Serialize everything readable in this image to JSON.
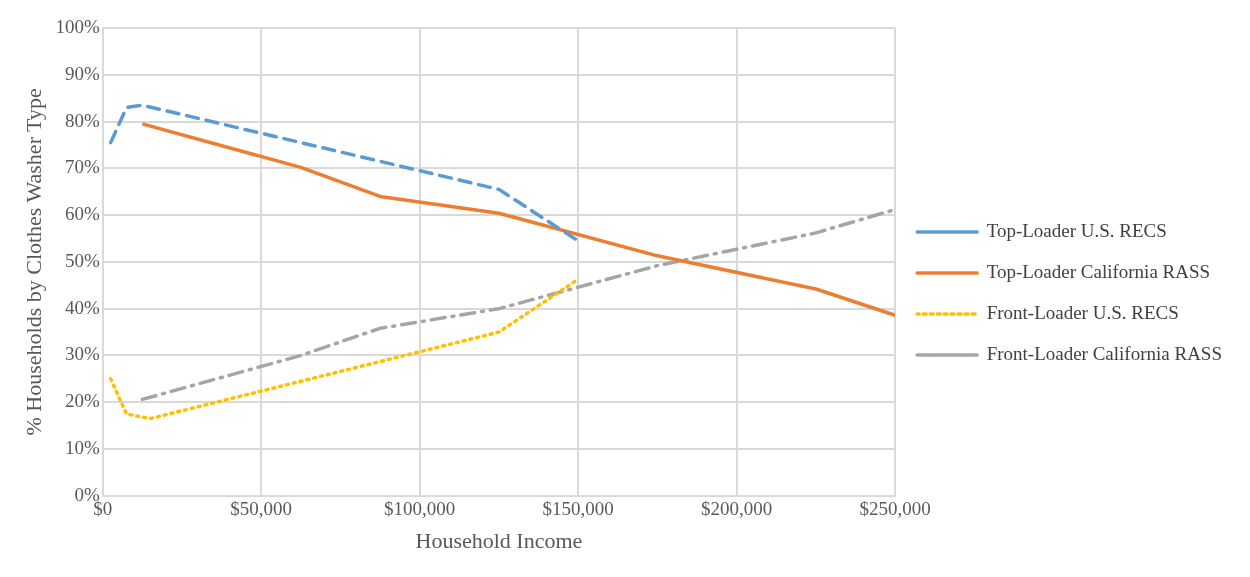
{
  "chart_data": {
    "type": "line",
    "xlabel": "Household Income",
    "ylabel": "% Households by Clothes Washer Type",
    "xlim": [
      0,
      250000
    ],
    "xticks": [
      {
        "value": 0,
        "label": "$0"
      },
      {
        "value": 50000,
        "label": "$50,000"
      },
      {
        "value": 100000,
        "label": "$100,000"
      },
      {
        "value": 150000,
        "label": "$150,000"
      },
      {
        "value": 200000,
        "label": "$200,000"
      },
      {
        "value": 250000,
        "label": "$250,000"
      }
    ],
    "ylim": [
      0,
      100
    ],
    "yticks": [
      {
        "value": 0,
        "label": "0%"
      },
      {
        "value": 10,
        "label": "10%"
      },
      {
        "value": 20,
        "label": "20%"
      },
      {
        "value": 30,
        "label": "30%"
      },
      {
        "value": 40,
        "label": "40%"
      },
      {
        "value": 50,
        "label": "50%"
      },
      {
        "value": 60,
        "label": "60%"
      },
      {
        "value": 70,
        "label": "70%"
      },
      {
        "value": 80,
        "label": "80%"
      },
      {
        "value": 90,
        "label": "90%"
      },
      {
        "value": 100,
        "label": "100%"
      }
    ],
    "grid": true,
    "legend": "right",
    "marker": "none",
    "series": [
      {
        "name": "Top-Loader U.S. RECS",
        "color": "#5b9bd5",
        "line_style": "dashed",
        "x": [
          2500,
          7500,
          12500,
          125000,
          150000
        ],
        "values": [
          75.5,
          83,
          83.5,
          65.5,
          54.5
        ]
      },
      {
        "name": "Top-Loader California RASS",
        "color": "#ed7d31",
        "line_style": "solid",
        "x": [
          12500,
          62500,
          87500,
          125000,
          175000,
          225000,
          250000
        ],
        "values": [
          79.5,
          70.2,
          64,
          60.4,
          51.3,
          44.2,
          38.6
        ]
      },
      {
        "name": "Front-Loader U.S. RECS",
        "color": "#ffc000",
        "line_style": "dotted",
        "x": [
          2500,
          7500,
          15000,
          125000,
          150000
        ],
        "values": [
          25,
          17.5,
          16.5,
          35,
          46.3
        ]
      },
      {
        "name": "Front-Loader California RASS",
        "color": "#a5a5a5",
        "line_style": "dashdot",
        "x": [
          12500,
          62500,
          87500,
          125000,
          175000,
          225000,
          250000
        ],
        "values": [
          20.6,
          30,
          35.8,
          40,
          49.2,
          56.2,
          61.2
        ]
      }
    ]
  }
}
